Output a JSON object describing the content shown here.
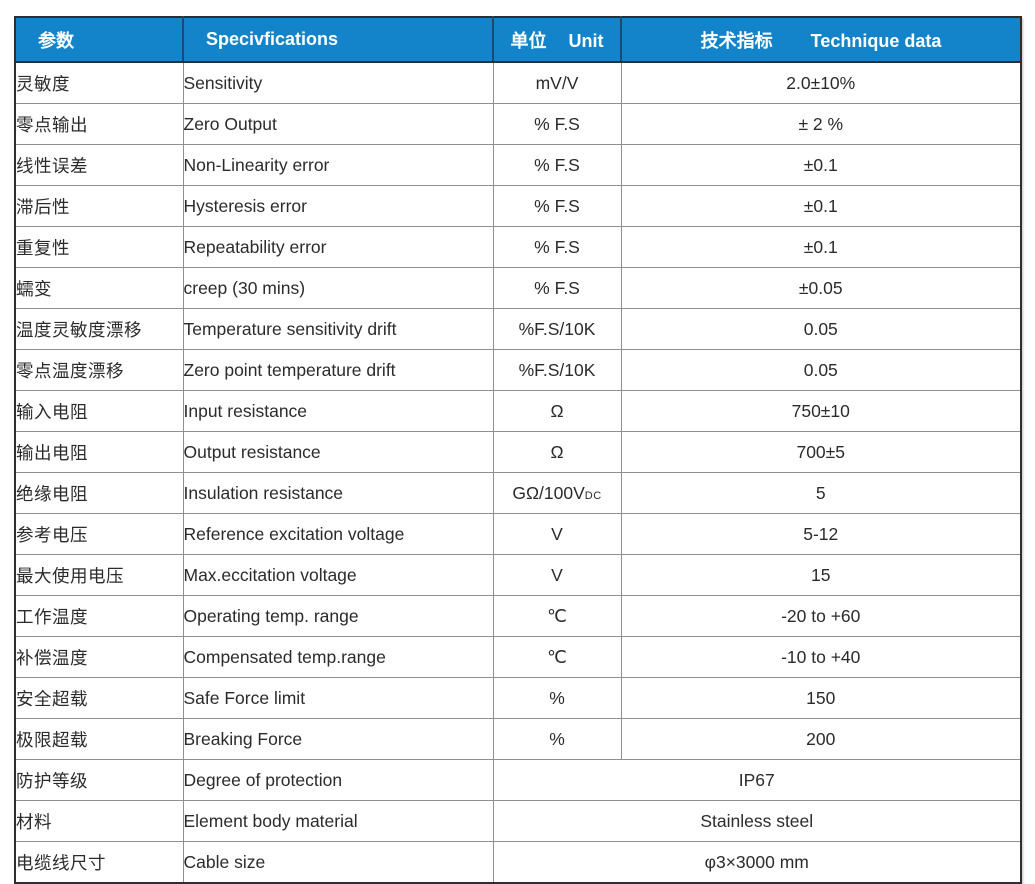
{
  "table": {
    "headers": {
      "param_cn": "参数",
      "spec_en": "Specivfications",
      "unit_cn": "单位",
      "unit_en": "Unit",
      "tech_cn": "技术指标",
      "tech_en": "Technique data"
    },
    "rows": [
      {
        "cn": "灵敏度",
        "en": "Sensitivity",
        "unit": "mV/V",
        "value": "2.0±10%"
      },
      {
        "cn": "零点输出",
        "en": "Zero Output",
        "unit": "% F.S",
        "value": "± 2 %"
      },
      {
        "cn": "线性误差",
        "en": "Non-Linearity error",
        "unit": "% F.S",
        "value": "±0.1"
      },
      {
        "cn": "滞后性",
        "en": "Hysteresis error",
        "unit": "% F.S",
        "value": "±0.1"
      },
      {
        "cn": "重复性",
        "en": "Repeatability error",
        "unit": "% F.S",
        "value": "±0.1"
      },
      {
        "cn": "蠕变",
        "en": "creep (30 mins)",
        "unit": "% F.S",
        "value": "±0.05"
      },
      {
        "cn": "温度灵敏度漂移",
        "en": "Temperature sensitivity drift",
        "unit": "%F.S/10K",
        "value": "0.05"
      },
      {
        "cn": "零点温度漂移",
        "en": "Zero point temperature drift",
        "unit": "%F.S/10K",
        "value": "0.05"
      },
      {
        "cn": "输入电阻",
        "en": "Input resistance",
        "unit": "Ω",
        "value": "750±10"
      },
      {
        "cn": "输出电阻",
        "en": "Output resistance",
        "unit": "Ω",
        "value": "700±5"
      },
      {
        "cn": "绝缘电阻",
        "en": "Insulation resistance",
        "unit": "GΩ/100V",
        "unit_sub": "DC",
        "value": "5"
      },
      {
        "cn": "参考电压",
        "en": "Reference excitation voltage",
        "unit": "V",
        "value": "5-12"
      },
      {
        "cn": "最大使用电压",
        "en": "Max.eccitation voltage",
        "unit": "V",
        "value": "15"
      },
      {
        "cn": "工作温度",
        "en": "Operating temp. range",
        "unit": "℃",
        "value": "-20 to +60"
      },
      {
        "cn": "补偿温度",
        "en": "Compensated temp.range",
        "unit": "℃",
        "value": "-10 to +40"
      },
      {
        "cn": "安全超载",
        "en": "Safe Force limit",
        "unit": "%",
        "value": "150"
      },
      {
        "cn": "极限超载",
        "en": "Breaking Force",
        "unit": "%",
        "value": "200"
      },
      {
        "cn": "防护等级",
        "en": "Degree of protection",
        "merged": true,
        "value": "IP67"
      },
      {
        "cn": "材料",
        "en": "Element body material",
        "merged": true,
        "value": "Stainless steel"
      },
      {
        "cn": "电缆线尺寸",
        "en": "Cable size",
        "merged": true,
        "value": "φ3×3000 mm"
      }
    ]
  },
  "colors": {
    "header_bg": "#1484ca",
    "header_text": "#ffffff",
    "header_divider": "#1c4a73",
    "outer_border": "#2e2e2e",
    "grid_line": "#8f8f8f",
    "body_text": "#2b2b2b"
  }
}
